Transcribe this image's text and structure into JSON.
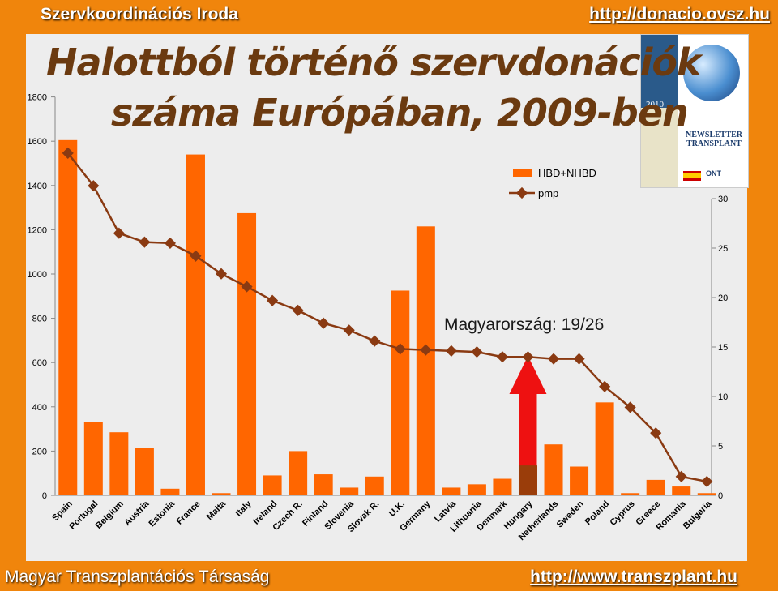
{
  "header": {
    "org": "Szervkoordinációs Iroda",
    "link": "http://donacio.ovsz.hu"
  },
  "title": {
    "line1": "Halottból történő szervdonációk",
    "line2": "száma Európában, 2009-ben"
  },
  "footer": {
    "org": "Magyar Transzplantációs Társaság",
    "link": "http://www.transzplant.hu"
  },
  "newsletter": {
    "year": "2010",
    "title": "NEWSLETTER TRANSPLANT",
    "ont": "ONT"
  },
  "colors": {
    "bar": "#ff6600",
    "highlight_bar": "#9a3d0a",
    "line": "#8a3a12",
    "arrow": "#ee1111",
    "background": "#f0850c",
    "panel": "#ededed"
  },
  "chart_data": {
    "type": "bar",
    "categories": [
      "Spain",
      "Portugal",
      "Belgium",
      "Austria",
      "Estonia",
      "France",
      "Malta",
      "Italy",
      "Ireland",
      "Czech R.",
      "Finland",
      "Slovenia",
      "Slovak R.",
      "U.K.",
      "Germany",
      "Latvia",
      "Lithuania",
      "Denmark",
      "Hungary",
      "Netherlands",
      "Sweden",
      "Poland",
      "Cyprus",
      "Greece",
      "Romania",
      "Bulgaria"
    ],
    "series": [
      {
        "name": "HBD+NHBD",
        "type": "bar",
        "axis": "left",
        "values": [
          1605,
          330,
          285,
          215,
          30,
          1540,
          10,
          1275,
          90,
          200,
          95,
          35,
          85,
          925,
          1215,
          35,
          50,
          75,
          135,
          230,
          130,
          420,
          10,
          70,
          40,
          10
        ]
      },
      {
        "name": "pmp",
        "type": "line",
        "axis": "right",
        "values": [
          34.6,
          31.3,
          26.5,
          25.6,
          25.5,
          24.2,
          22.4,
          21.1,
          19.7,
          18.7,
          17.4,
          16.7,
          15.6,
          14.8,
          14.7,
          14.6,
          14.5,
          14.0,
          14.0,
          13.8,
          13.8,
          11.0,
          8.9,
          6.3,
          1.9,
          1.4
        ]
      }
    ],
    "highlight": "Hungary",
    "annotation": "Magyarország: 19/26",
    "y_left": {
      "ticks": [
        0,
        200,
        400,
        600,
        800,
        1000,
        1200,
        1400,
        1600,
        1800
      ],
      "range": [
        0,
        1800
      ]
    },
    "y_right": {
      "ticks": [
        0,
        5,
        10,
        15,
        20,
        25,
        30
      ],
      "range": [
        0,
        35.5
      ]
    },
    "legend_position": "top-right",
    "grid": false
  }
}
